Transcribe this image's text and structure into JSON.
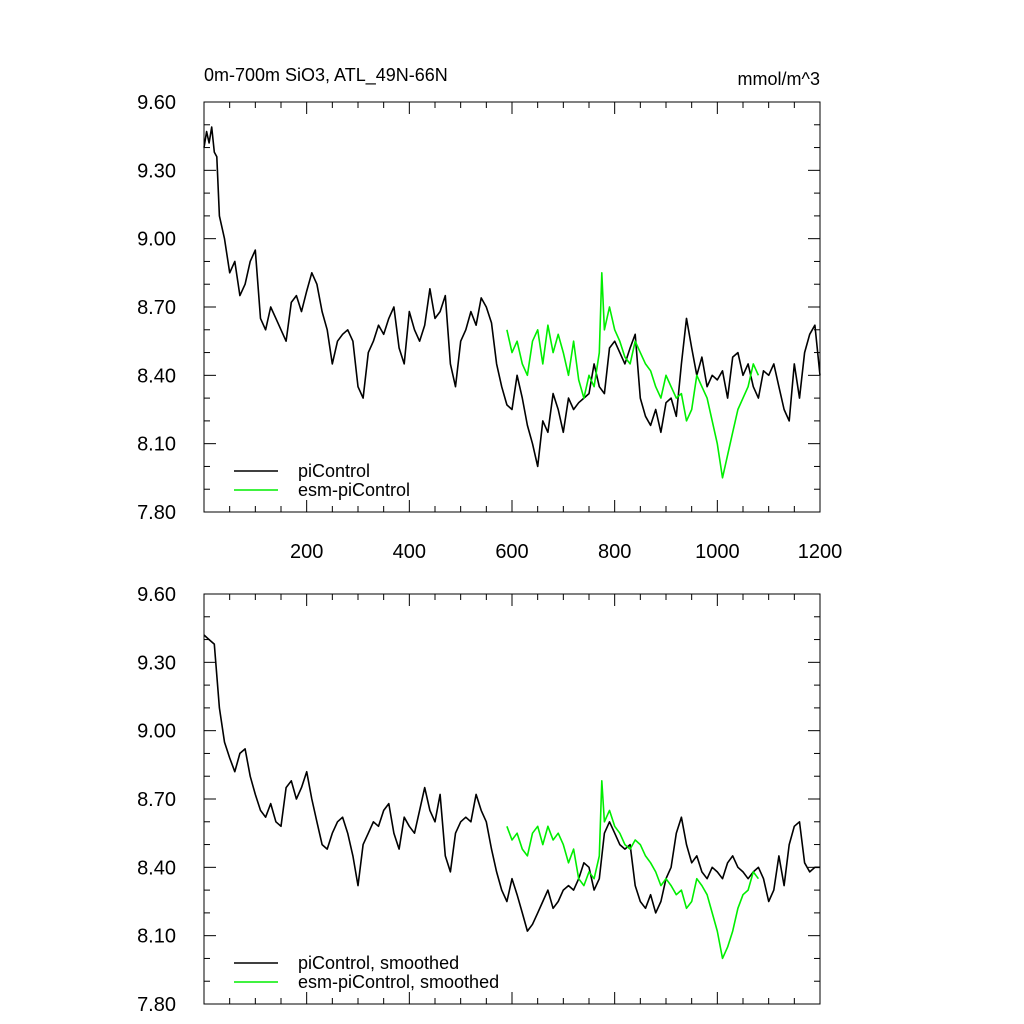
{
  "chart_data": [
    {
      "type": "line",
      "panel": "top",
      "title": "0m-700m SiO3, ATL_49N-66N",
      "units": "mmol/m^3",
      "xlim": [
        0,
        1200
      ],
      "ylim": [
        7.8,
        9.6
      ],
      "yticks": [
        "9.60",
        "9.30",
        "9.00",
        "8.70",
        "8.40",
        "8.10",
        "7.80"
      ],
      "xticks": [
        "200",
        "400",
        "600",
        "800",
        "1000",
        "1200"
      ],
      "series": [
        {
          "name": "piControl",
          "color": "#000000",
          "x": [
            0,
            5,
            10,
            15,
            20,
            25,
            30,
            40,
            50,
            60,
            70,
            80,
            90,
            100,
            110,
            120,
            130,
            140,
            150,
            160,
            170,
            180,
            190,
            200,
            210,
            220,
            230,
            240,
            250,
            260,
            270,
            280,
            290,
            300,
            310,
            320,
            330,
            340,
            350,
            360,
            370,
            380,
            390,
            400,
            410,
            420,
            430,
            440,
            450,
            460,
            470,
            480,
            490,
            500,
            510,
            520,
            530,
            540,
            550,
            560,
            570,
            580,
            590,
            600,
            610,
            620,
            630,
            640,
            650,
            660,
            670,
            680,
            690,
            700,
            710,
            720,
            730,
            740,
            750,
            760,
            770,
            780,
            790,
            800,
            810,
            820,
            830,
            840,
            850,
            860,
            870,
            880,
            890,
            900,
            910,
            920,
            930,
            940,
            950,
            960,
            970,
            980,
            990,
            1000,
            1010,
            1020,
            1030,
            1040,
            1050,
            1060,
            1070,
            1080,
            1090,
            1100,
            1110,
            1120,
            1130,
            1140,
            1150,
            1160,
            1170,
            1180,
            1190,
            1200
          ],
          "values": [
            9.4,
            9.47,
            9.42,
            9.49,
            9.38,
            9.36,
            9.1,
            9.0,
            8.85,
            8.9,
            8.75,
            8.8,
            8.9,
            8.95,
            8.65,
            8.6,
            8.7,
            8.65,
            8.6,
            8.55,
            8.72,
            8.75,
            8.68,
            8.77,
            8.85,
            8.8,
            8.68,
            8.6,
            8.45,
            8.55,
            8.58,
            8.6,
            8.55,
            8.35,
            8.3,
            8.5,
            8.55,
            8.62,
            8.58,
            8.65,
            8.7,
            8.52,
            8.45,
            8.68,
            8.6,
            8.55,
            8.62,
            8.78,
            8.65,
            8.68,
            8.75,
            8.45,
            8.35,
            8.55,
            8.6,
            8.68,
            8.62,
            8.74,
            8.7,
            8.63,
            8.45,
            8.35,
            8.27,
            8.25,
            8.4,
            8.3,
            8.18,
            8.1,
            8.0,
            8.2,
            8.15,
            8.32,
            8.25,
            8.15,
            8.3,
            8.25,
            8.28,
            8.3,
            8.32,
            8.45,
            8.35,
            8.32,
            8.52,
            8.55,
            8.5,
            8.45,
            8.52,
            8.58,
            8.3,
            8.22,
            8.18,
            8.25,
            8.15,
            8.28,
            8.3,
            8.22,
            8.45,
            8.65,
            8.52,
            8.4,
            8.48,
            8.35,
            8.4,
            8.38,
            8.42,
            8.3,
            8.48,
            8.5,
            8.4,
            8.45,
            8.35,
            8.3,
            8.42,
            8.4,
            8.45,
            8.35,
            8.25,
            8.2,
            8.45,
            8.3,
            8.5,
            8.58,
            8.62,
            8.4
          ]
        },
        {
          "name": "esm-piControl",
          "color": "#00ee00",
          "x": [
            590,
            600,
            610,
            620,
            630,
            640,
            650,
            660,
            670,
            680,
            690,
            700,
            710,
            720,
            730,
            740,
            750,
            760,
            770,
            775,
            780,
            790,
            800,
            810,
            820,
            830,
            840,
            850,
            860,
            870,
            880,
            890,
            900,
            910,
            920,
            930,
            940,
            950,
            960,
            970,
            980,
            990,
            1000,
            1010,
            1020,
            1030,
            1040,
            1050,
            1060,
            1070,
            1080
          ],
          "values": [
            8.6,
            8.5,
            8.55,
            8.45,
            8.4,
            8.55,
            8.6,
            8.45,
            8.62,
            8.5,
            8.58,
            8.5,
            8.4,
            8.55,
            8.38,
            8.3,
            8.4,
            8.35,
            8.5,
            8.85,
            8.6,
            8.7,
            8.6,
            8.55,
            8.48,
            8.45,
            8.55,
            8.5,
            8.45,
            8.42,
            8.35,
            8.3,
            8.4,
            8.35,
            8.3,
            8.32,
            8.2,
            8.25,
            8.4,
            8.35,
            8.3,
            8.2,
            8.1,
            7.95,
            8.05,
            8.15,
            8.25,
            8.3,
            8.35,
            8.45,
            8.4
          ]
        }
      ],
      "legend_position": "bottom-left"
    },
    {
      "type": "line",
      "panel": "bottom",
      "xlim": [
        0,
        1200
      ],
      "ylim": [
        7.8,
        9.6
      ],
      "yticks": [
        "9.60",
        "9.30",
        "9.00",
        "8.70",
        "8.40",
        "8.10",
        "7.80"
      ],
      "series": [
        {
          "name": "piControl, smoothed",
          "color": "#000000",
          "x": [
            0,
            10,
            20,
            30,
            40,
            50,
            60,
            70,
            80,
            90,
            100,
            110,
            120,
            130,
            140,
            150,
            160,
            170,
            180,
            190,
            200,
            210,
            220,
            230,
            240,
            250,
            260,
            270,
            280,
            290,
            300,
            310,
            320,
            330,
            340,
            350,
            360,
            370,
            380,
            390,
            400,
            410,
            420,
            430,
            440,
            450,
            460,
            470,
            480,
            490,
            500,
            510,
            520,
            530,
            540,
            550,
            560,
            570,
            580,
            590,
            600,
            610,
            620,
            630,
            640,
            650,
            660,
            670,
            680,
            690,
            700,
            710,
            720,
            730,
            740,
            750,
            760,
            770,
            780,
            790,
            800,
            810,
            820,
            830,
            840,
            850,
            860,
            870,
            880,
            890,
            900,
            910,
            920,
            930,
            940,
            950,
            960,
            970,
            980,
            990,
            1000,
            1010,
            1020,
            1030,
            1040,
            1050,
            1060,
            1070,
            1080,
            1090,
            1100,
            1110,
            1120,
            1130,
            1140,
            1150,
            1160,
            1170,
            1180,
            1190,
            1200
          ],
          "values": [
            9.42,
            9.4,
            9.38,
            9.1,
            8.95,
            8.88,
            8.82,
            8.9,
            8.92,
            8.8,
            8.72,
            8.65,
            8.62,
            8.68,
            8.6,
            8.58,
            8.75,
            8.78,
            8.7,
            8.75,
            8.82,
            8.7,
            8.6,
            8.5,
            8.48,
            8.55,
            8.6,
            8.62,
            8.55,
            8.45,
            8.32,
            8.5,
            8.55,
            8.6,
            8.58,
            8.65,
            8.68,
            8.55,
            8.48,
            8.62,
            8.58,
            8.55,
            8.65,
            8.75,
            8.65,
            8.6,
            8.72,
            8.45,
            8.38,
            8.55,
            8.6,
            8.62,
            8.6,
            8.72,
            8.65,
            8.6,
            8.48,
            8.38,
            8.3,
            8.25,
            8.35,
            8.28,
            8.2,
            8.12,
            8.15,
            8.2,
            8.25,
            8.3,
            8.22,
            8.25,
            8.3,
            8.32,
            8.3,
            8.35,
            8.42,
            8.4,
            8.3,
            8.35,
            8.55,
            8.6,
            8.55,
            8.5,
            8.48,
            8.5,
            8.32,
            8.25,
            8.22,
            8.28,
            8.2,
            8.25,
            8.35,
            8.4,
            8.55,
            8.62,
            8.5,
            8.42,
            8.45,
            8.38,
            8.35,
            8.4,
            8.38,
            8.35,
            8.42,
            8.45,
            8.4,
            8.38,
            8.35,
            8.38,
            8.4,
            8.35,
            8.25,
            8.3,
            8.45,
            8.32,
            8.5,
            8.58,
            8.6,
            8.42,
            8.38,
            8.4,
            8.4
          ]
        },
        {
          "name": "esm-piControl, smoothed",
          "color": "#00ee00",
          "x": [
            590,
            600,
            610,
            620,
            630,
            640,
            650,
            660,
            670,
            680,
            690,
            700,
            710,
            720,
            730,
            740,
            750,
            760,
            770,
            775,
            780,
            790,
            800,
            810,
            820,
            830,
            840,
            850,
            860,
            870,
            880,
            890,
            900,
            910,
            920,
            930,
            940,
            950,
            960,
            970,
            980,
            990,
            1000,
            1010,
            1020,
            1030,
            1040,
            1050,
            1060,
            1070,
            1080
          ],
          "values": [
            8.58,
            8.52,
            8.55,
            8.48,
            8.45,
            8.55,
            8.58,
            8.5,
            8.58,
            8.52,
            8.55,
            8.5,
            8.42,
            8.48,
            8.35,
            8.32,
            8.38,
            8.35,
            8.45,
            8.78,
            8.6,
            8.65,
            8.58,
            8.55,
            8.5,
            8.48,
            8.52,
            8.5,
            8.45,
            8.42,
            8.38,
            8.32,
            8.35,
            8.32,
            8.28,
            8.3,
            8.22,
            8.25,
            8.35,
            8.32,
            8.28,
            8.2,
            8.12,
            8.0,
            8.05,
            8.12,
            8.22,
            8.28,
            8.3,
            8.38,
            8.35
          ]
        }
      ],
      "legend_position": "bottom-left"
    }
  ]
}
